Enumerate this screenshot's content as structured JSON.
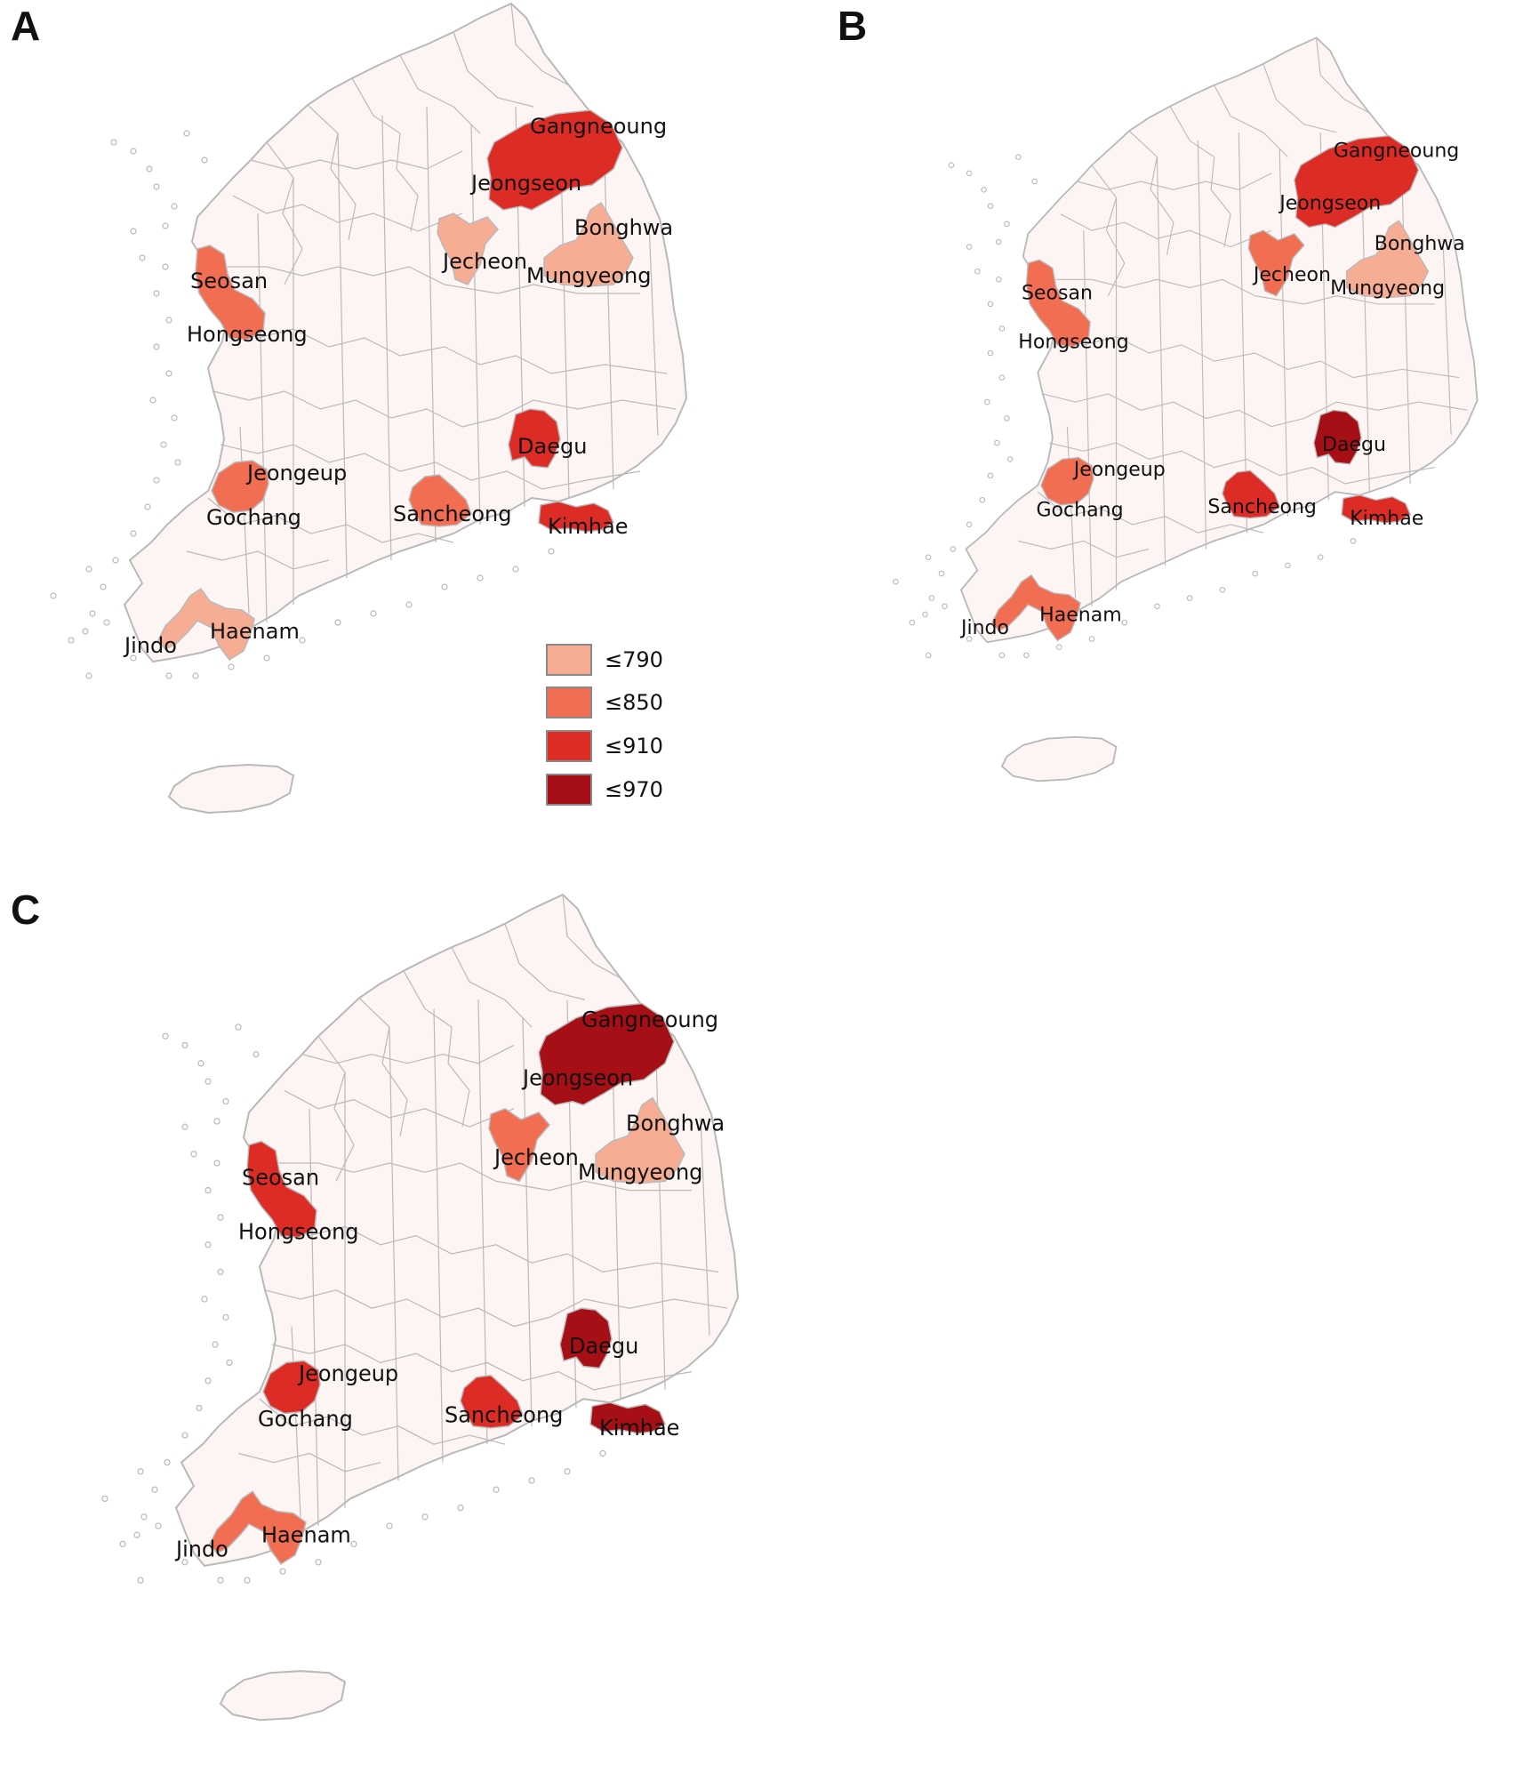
{
  "colors": {
    "base_fill": "#fdf5f4",
    "border": "#b9b9b9",
    "le790": "#f7ad94",
    "le850": "#f26e52",
    "le910": "#dd2c25",
    "le970": "#a50f15"
  },
  "legend": {
    "items": [
      {
        "label": "≤790",
        "color_key": "le790"
      },
      {
        "label": "≤850",
        "color_key": "le850"
      },
      {
        "label": "≤910",
        "color_key": "le910"
      },
      {
        "label": "≤970",
        "color_key": "le970"
      }
    ]
  },
  "regions": [
    {
      "id": "gangneoung",
      "label": "Gangneoung"
    },
    {
      "id": "jeongseon",
      "label": "Jeongseon"
    },
    {
      "id": "bonghwa",
      "label": "Bonghwa"
    },
    {
      "id": "jecheon",
      "label": "Jecheon"
    },
    {
      "id": "mungyeong",
      "label": "Mungyeong"
    },
    {
      "id": "seosan",
      "label": "Seosan"
    },
    {
      "id": "hongseong",
      "label": "Hongseong"
    },
    {
      "id": "daegu",
      "label": "Daegu"
    },
    {
      "id": "jeongeup",
      "label": "Jeongeup"
    },
    {
      "id": "gochang",
      "label": "Gochang"
    },
    {
      "id": "sancheong",
      "label": "Sancheong"
    },
    {
      "id": "kimhae",
      "label": "Kimhae"
    },
    {
      "id": "jindo",
      "label": "Jindo"
    },
    {
      "id": "haenam",
      "label": "Haenam"
    }
  ],
  "panels": [
    {
      "letter": "A",
      "classes": {
        "gangneung_jeongseon": "le910",
        "bonghwa_mungyeong": "le790",
        "jecheon": "le790",
        "seosan_hongseong": "le850",
        "daegu": "le910",
        "jeongeup_gochang": "le850",
        "sancheong": "le850",
        "kimhae": "le910",
        "jindo_haenam": "le790"
      }
    },
    {
      "letter": "B",
      "classes": {
        "gangneung_jeongseon": "le910",
        "bonghwa_mungyeong": "le790",
        "jecheon": "le850",
        "seosan_hongseong": "le850",
        "daegu": "le970",
        "jeongeup_gochang": "le850",
        "sancheong": "le910",
        "kimhae": "le910",
        "jindo_haenam": "le850"
      }
    },
    {
      "letter": "C",
      "classes": {
        "gangneung_jeongseon": "le970",
        "bonghwa_mungyeong": "le790",
        "jecheon": "le850",
        "seosan_hongseong": "le910",
        "daegu": "le970",
        "jeongeup_gochang": "le910",
        "sancheong": "le910",
        "kimhae": "le970",
        "jindo_haenam": "le850"
      }
    }
  ]
}
